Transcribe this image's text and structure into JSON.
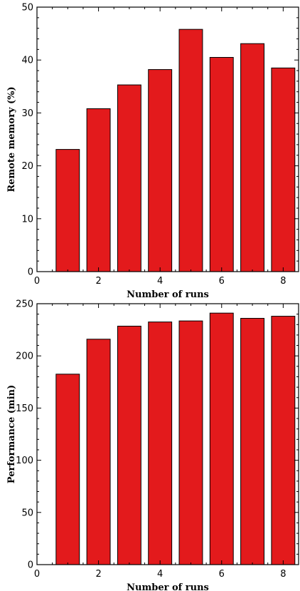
{
  "chart_data": [
    {
      "type": "bar",
      "title": "",
      "xlabel": "Number of runs",
      "ylabel": "Remote memory (%)",
      "x": [
        1,
        2,
        3,
        4,
        5,
        6,
        7,
        8
      ],
      "values": [
        23.1,
        30.8,
        35.3,
        38.2,
        45.8,
        40.5,
        43.1,
        38.5
      ],
      "xlim": [
        0,
        8.5
      ],
      "ylim": [
        0,
        50
      ],
      "xticks": [
        0,
        2,
        4,
        6,
        8
      ],
      "yticks": [
        0,
        10,
        20,
        30,
        40,
        50
      ],
      "bar_color": "#e31a1c",
      "grid": false
    },
    {
      "type": "bar",
      "title": "",
      "xlabel": "Number of runs",
      "ylabel": "Performance (min)",
      "x": [
        1,
        2,
        3,
        4,
        5,
        6,
        7,
        8
      ],
      "values": [
        182.5,
        216,
        228.5,
        232.5,
        233.5,
        241,
        236,
        238
      ],
      "xlim": [
        0,
        8.5
      ],
      "ylim": [
        0,
        250
      ],
      "xticks": [
        0,
        2,
        4,
        6,
        8
      ],
      "yticks": [
        0,
        50,
        100,
        150,
        200,
        250
      ],
      "bar_color": "#e31a1c",
      "grid": false
    }
  ]
}
